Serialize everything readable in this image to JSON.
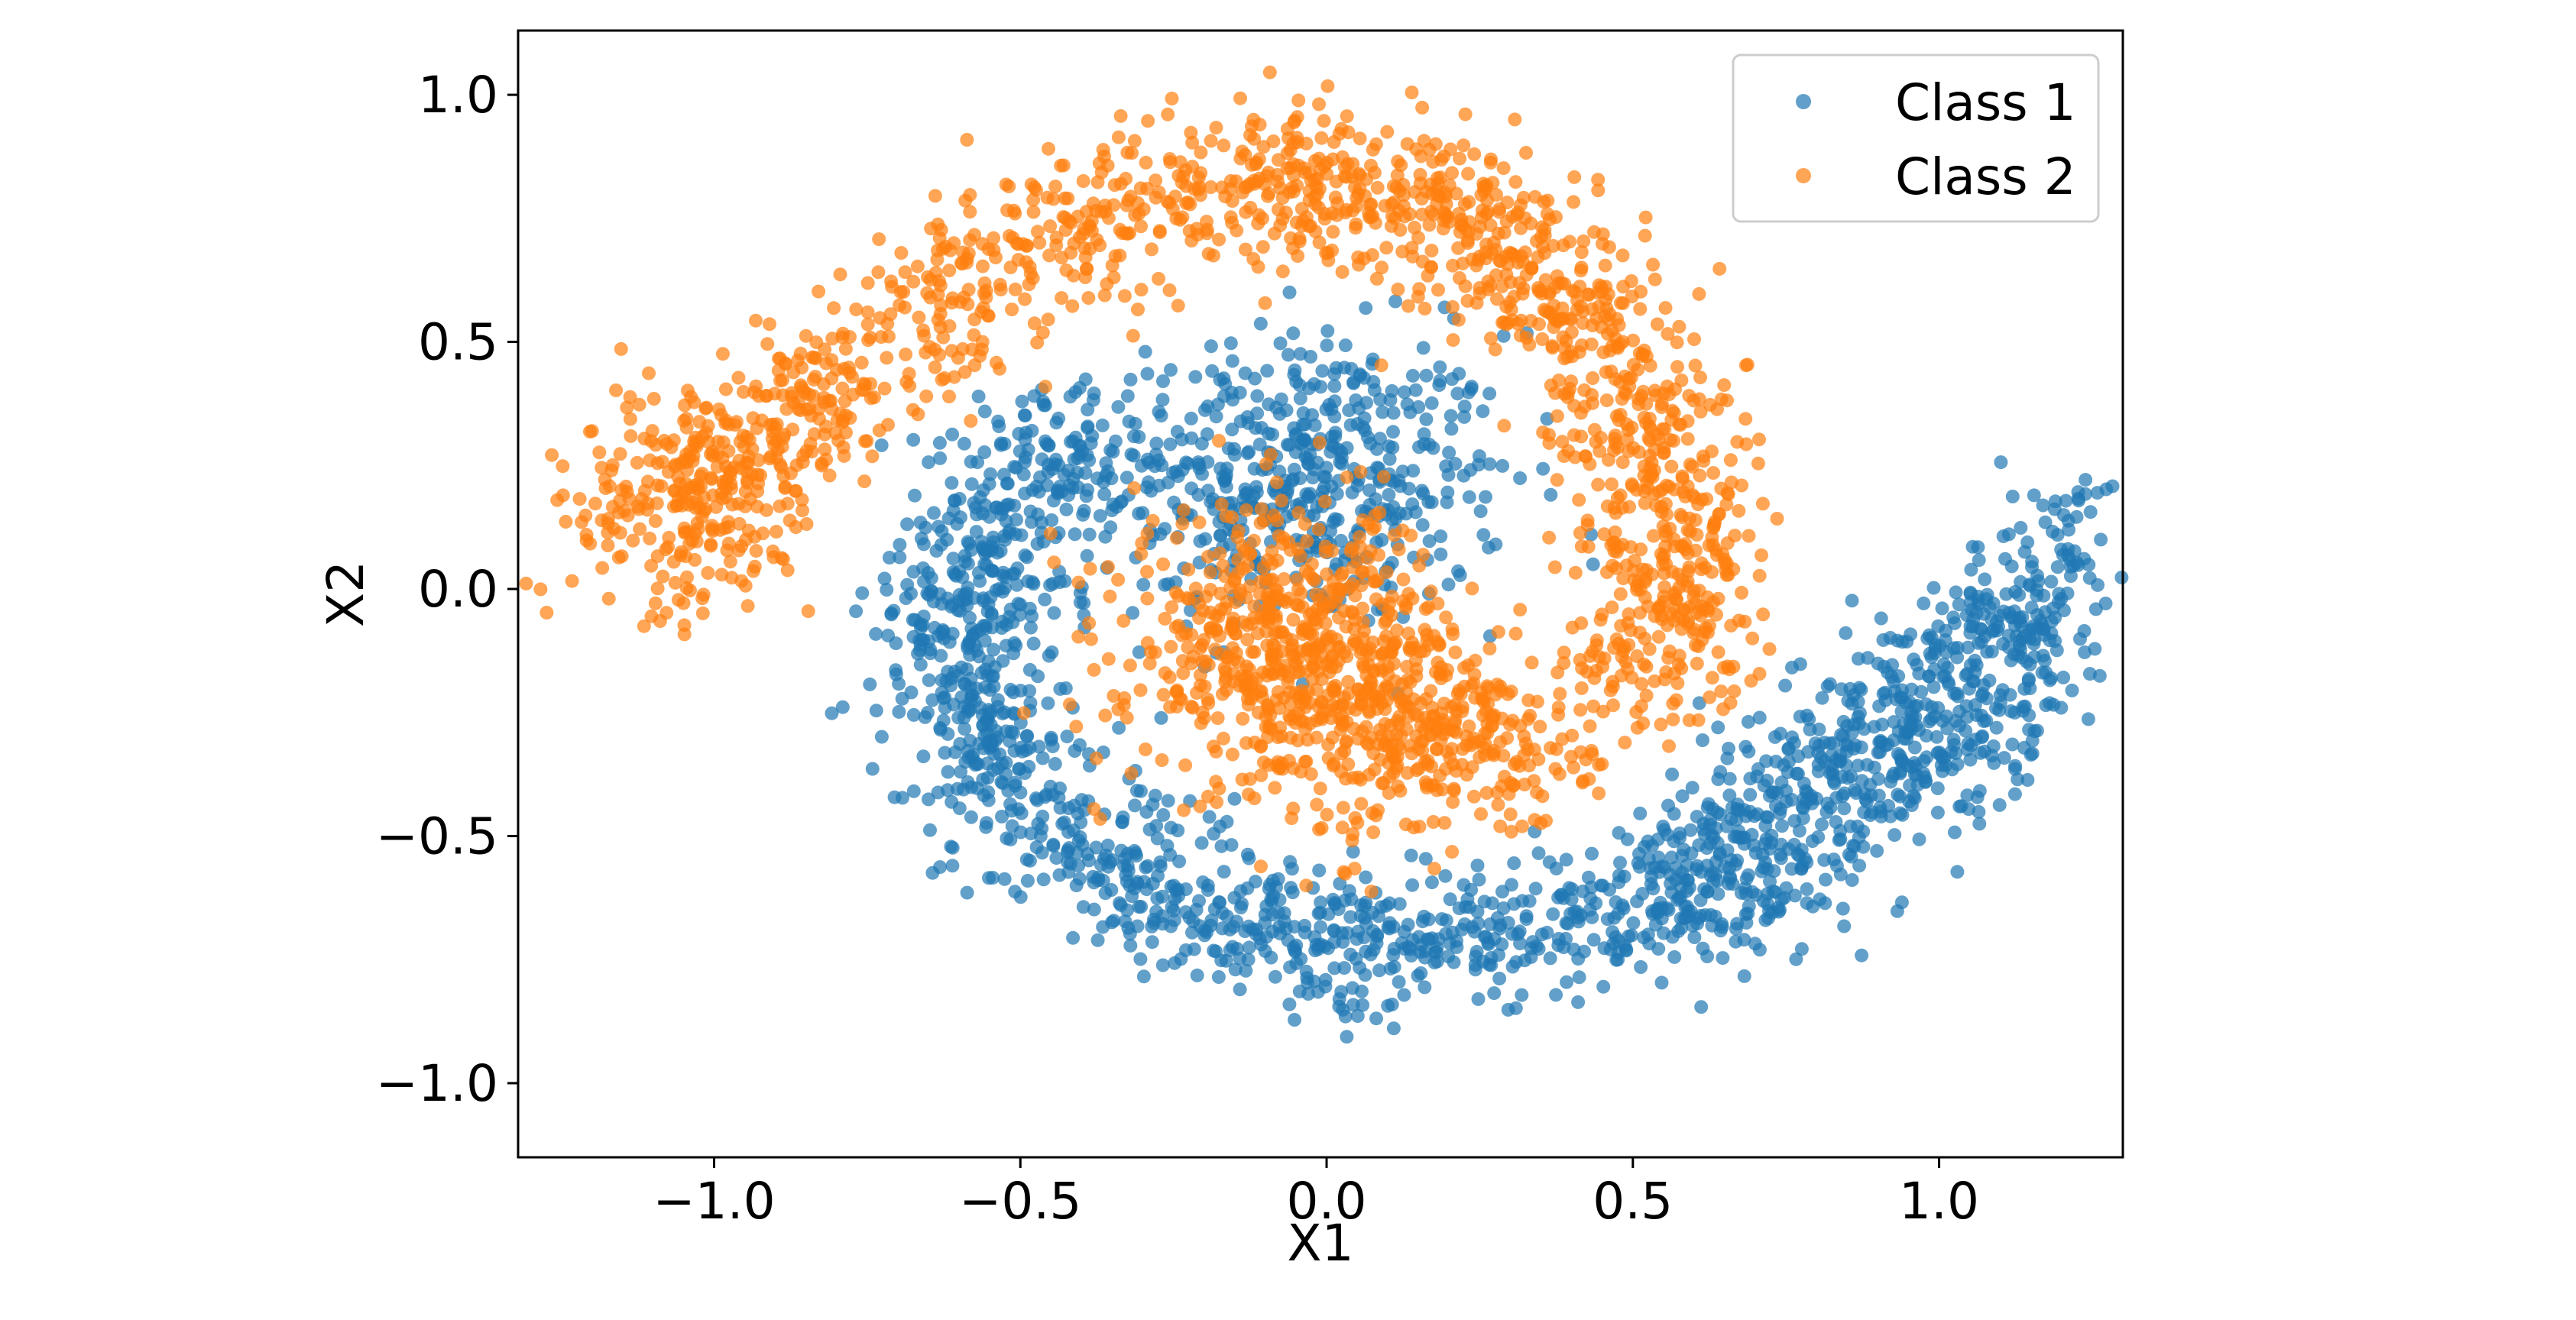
{
  "chart_data": {
    "type": "scatter",
    "title": "",
    "xlabel": "X1",
    "ylabel": "X2",
    "xlim": [
      -1.32,
      1.3
    ],
    "ylim": [
      -1.15,
      1.13
    ],
    "xticks": [
      -1.0,
      -0.5,
      0.0,
      0.5,
      1.0
    ],
    "yticks": [
      -1.0,
      -0.5,
      0.0,
      0.5,
      1.0
    ],
    "xtick_labels": [
      "−1.0",
      "−0.5",
      "0.0",
      "0.5",
      "1.0"
    ],
    "ytick_labels": [
      "−1.0",
      "−0.5",
      "0.0",
      "0.5",
      "1.0"
    ],
    "grid": false,
    "legend_position": "top-right",
    "series": [
      {
        "name": "Class 1",
        "color": "#1f77b4",
        "alpha": 0.7,
        "description": "blue points: dense central blob near (-0.05, 0.25) plus a spiral arm winding from (-0.5, 0.3) down through (0.0, -0.85) to (1.15, 0.0)",
        "points": []
      },
      {
        "name": "Class 2",
        "color": "#ff7f0e",
        "alpha": 0.7,
        "description": "orange points: dense central blob near (-0.05, -0.15) plus a spiral arm winding from (0.2, -0.3) up through (0.6, 0.3), (0.0, 0.8) to (-1.15, 0.1)",
        "points": []
      }
    ]
  }
}
